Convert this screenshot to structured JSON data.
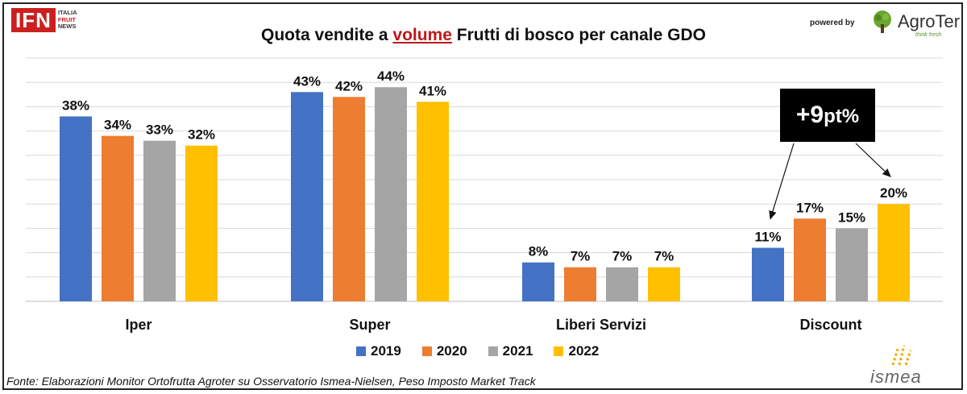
{
  "header": {
    "logo_main": "IFN",
    "logo_sub": [
      "ITALIA",
      "FRUIT",
      "NEWS"
    ],
    "title_before": "Quota vendite a ",
    "title_highlight": "volume",
    "title_after": " Frutti di bosco per canale GDO",
    "powered_by": "powered by",
    "partner_logo": "AgroTer",
    "partner_tagline": "think fresh"
  },
  "callout": {
    "big": "+9",
    "small": "pt%"
  },
  "footer": {
    "source": "Fonte: Elaborazioni Monitor Ortofrutta Agroter su Osservatorio Ismea-Nielsen, Peso Imposto Market Track",
    "ismea_logo": "ismea"
  },
  "colors": {
    "2019": "#4472c4",
    "2020": "#ed7d31",
    "2021": "#a5a5a5",
    "2022": "#ffc000",
    "accent": "#c0181a"
  },
  "chart_data": {
    "type": "bar",
    "title": "Quota vendite a volume Frutti di bosco per canale GDO",
    "categories": [
      "Iper",
      "Super",
      "Liberi Servizi",
      "Discount"
    ],
    "series": [
      {
        "name": "2019",
        "values": [
          38,
          43,
          8,
          11
        ],
        "labels": [
          "38%",
          "43%",
          "8%",
          "11%"
        ]
      },
      {
        "name": "2020",
        "values": [
          34,
          42,
          7,
          17
        ],
        "labels": [
          "34%",
          "42%",
          "7%",
          "17%"
        ]
      },
      {
        "name": "2021",
        "values": [
          33,
          44,
          7,
          15
        ],
        "labels": [
          "33%",
          "44%",
          "7%",
          "15%"
        ]
      },
      {
        "name": "2022",
        "values": [
          32,
          41,
          7,
          20
        ],
        "labels": [
          "32%",
          "41%",
          "7%",
          "20%"
        ]
      }
    ],
    "ylim": [
      0,
      50
    ],
    "unit": "%",
    "grid": true,
    "legend_position": "bottom",
    "annotation": "+9pt%"
  }
}
